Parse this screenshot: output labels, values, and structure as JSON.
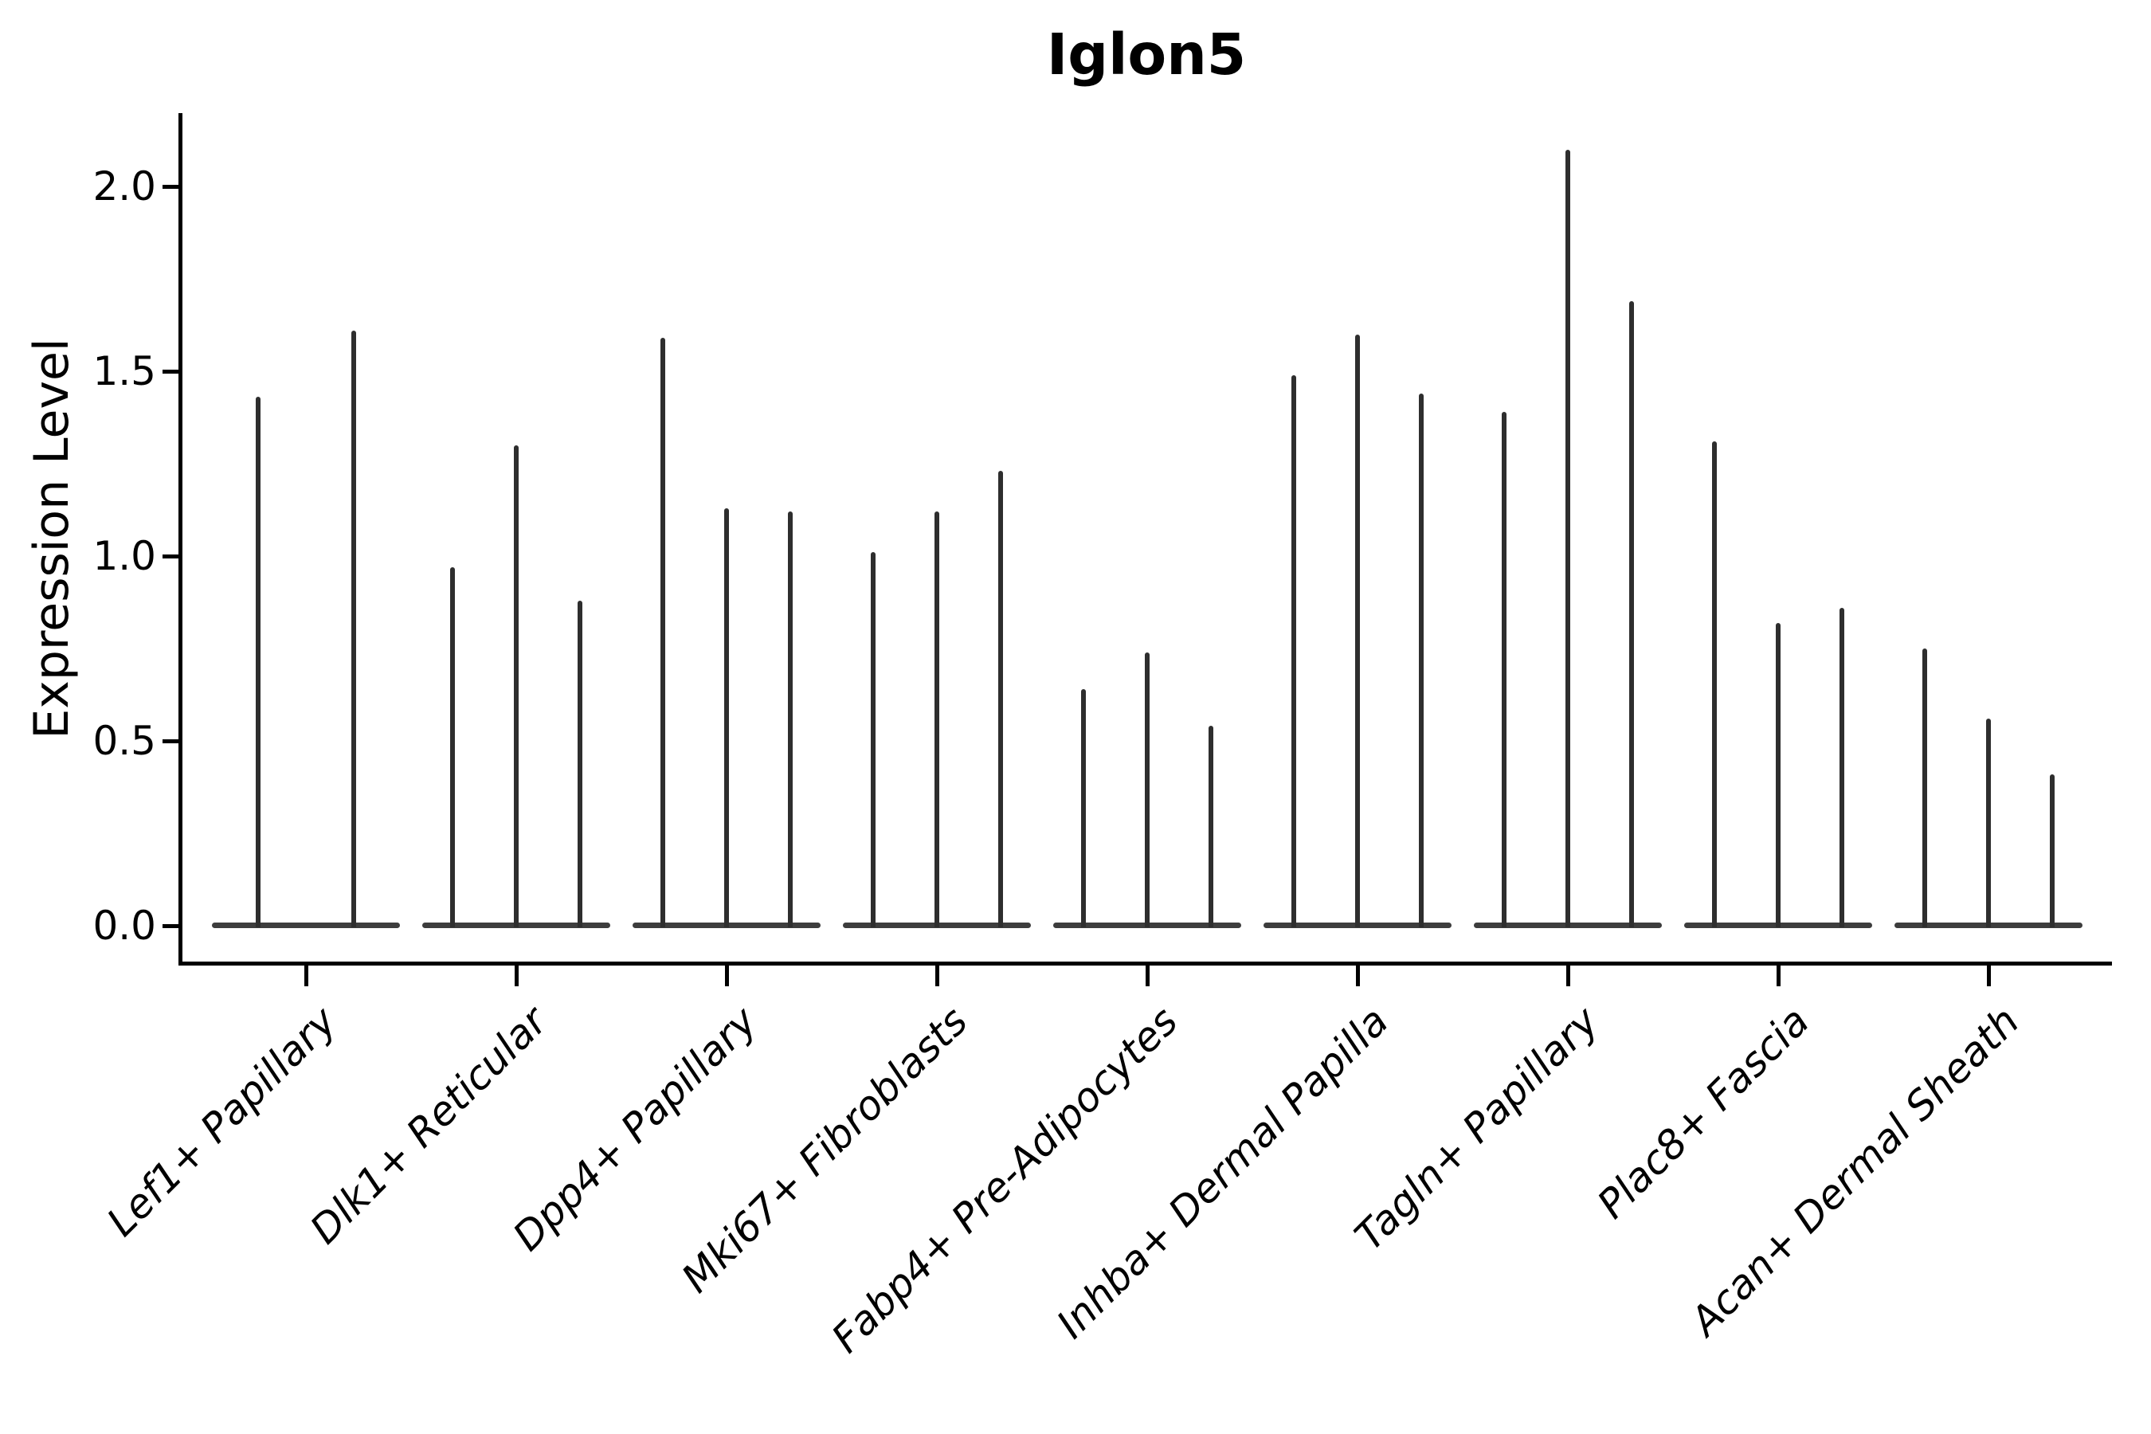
{
  "chart_data": {
    "type": "violin",
    "title": "Iglon5",
    "ylabel": "Expression Level",
    "xlabel": "",
    "categories": [
      "Lef1+ Papillary",
      "Dlk1+ Reticular",
      "Dpp4+ Papillary",
      "Mki67+ Fibroblasts",
      "Fabp4+ Pre-Adipocytes",
      "Inhba+ Dermal Papilla",
      "Tagln+ Papillary",
      "Plac8+ Fascia",
      "Acan+ Dermal Sheath"
    ],
    "violin_max_values": [
      [
        1.43,
        1.61
      ],
      [
        0.97,
        1.3,
        0.88
      ],
      [
        1.59,
        1.13,
        1.12
      ],
      [
        1.01,
        1.12,
        1.23
      ],
      [
        0.64,
        0.74,
        0.54
      ],
      [
        1.49,
        1.6,
        1.44
      ],
      [
        1.39,
        2.1,
        1.69
      ],
      [
        1.31,
        0.82,
        0.86
      ],
      [
        0.75,
        0.56,
        0.41
      ]
    ],
    "ytick_labels": [
      "0.0",
      "0.5",
      "1.0",
      "1.5",
      "2.0"
    ],
    "ytick_values": [
      0.0,
      0.5,
      1.0,
      1.5,
      2.0
    ],
    "ylim": [
      -0.1,
      2.2
    ],
    "grid": false,
    "legend_position": "none",
    "colors": {
      "violin_stroke": "#2e2e2e",
      "violin_base": "#3d3d3d",
      "axis": "#000000",
      "text": "#000000",
      "background": "#ffffff"
    }
  }
}
